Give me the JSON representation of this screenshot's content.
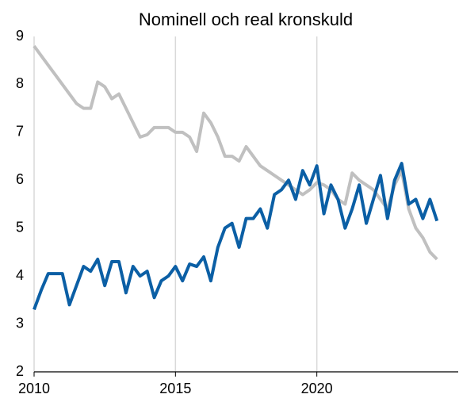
{
  "chart_data": {
    "type": "line",
    "title": "Nominell och real kronskuld",
    "x": [
      2010,
      2010.25,
      2010.5,
      2010.75,
      2011,
      2011.25,
      2011.5,
      2011.75,
      2012,
      2012.25,
      2012.5,
      2012.75,
      2013,
      2013.25,
      2013.5,
      2013.75,
      2014,
      2014.25,
      2014.5,
      2014.75,
      2015,
      2015.25,
      2015.5,
      2015.75,
      2016,
      2016.25,
      2016.5,
      2016.75,
      2017,
      2017.25,
      2017.5,
      2017.75,
      2018,
      2018.25,
      2018.5,
      2018.75,
      2019,
      2019.25,
      2019.5,
      2019.75,
      2020,
      2020.25,
      2020.5,
      2020.75,
      2021,
      2021.25,
      2021.5,
      2021.75,
      2022,
      2022.25,
      2022.5,
      2022.75,
      2023,
      2023.25,
      2023.5,
      2023.75,
      2024,
      2024.25
    ],
    "series": [
      {
        "color": "#c0c0c0",
        "values": [
          8.8,
          8.6,
          8.4,
          8.2,
          8.0,
          7.8,
          7.6,
          7.5,
          7.5,
          8.05,
          7.95,
          7.7,
          7.8,
          7.5,
          7.2,
          6.9,
          6.95,
          7.1,
          7.1,
          7.1,
          7.0,
          7.0,
          6.9,
          6.6,
          7.4,
          7.2,
          6.9,
          6.5,
          6.5,
          6.4,
          6.7,
          6.5,
          6.3,
          6.2,
          6.1,
          6.0,
          5.9,
          5.8,
          5.7,
          5.8,
          5.95,
          5.9,
          5.8,
          5.6,
          5.5,
          6.15,
          6.0,
          5.9,
          5.8,
          5.6,
          5.4,
          5.9,
          6.2,
          5.4,
          5.0,
          4.8,
          4.5,
          4.35
        ]
      },
      {
        "color": "#0b5fa5",
        "values": [
          3.3,
          3.7,
          4.05,
          4.05,
          4.05,
          3.4,
          3.8,
          4.2,
          4.1,
          4.35,
          3.8,
          4.3,
          4.3,
          3.65,
          4.2,
          4.0,
          4.1,
          3.55,
          3.9,
          4.0,
          4.2,
          3.9,
          4.25,
          4.2,
          4.4,
          3.9,
          4.6,
          5.0,
          5.1,
          4.6,
          5.2,
          5.2,
          5.4,
          5.0,
          5.7,
          5.8,
          6.0,
          5.6,
          6.2,
          5.9,
          6.3,
          5.3,
          5.9,
          5.6,
          5.0,
          5.4,
          5.9,
          5.1,
          5.6,
          6.1,
          5.2,
          6.0,
          6.35,
          5.5,
          5.6,
          5.2,
          5.6,
          5.15
        ]
      }
    ],
    "xlim": [
      2010,
      2025
    ],
    "xticks": [
      2010,
      2015,
      2020
    ],
    "ylim": [
      2,
      9
    ],
    "yticks": [
      2,
      3,
      4,
      5,
      6,
      7,
      8,
      9
    ],
    "grid": "x"
  }
}
